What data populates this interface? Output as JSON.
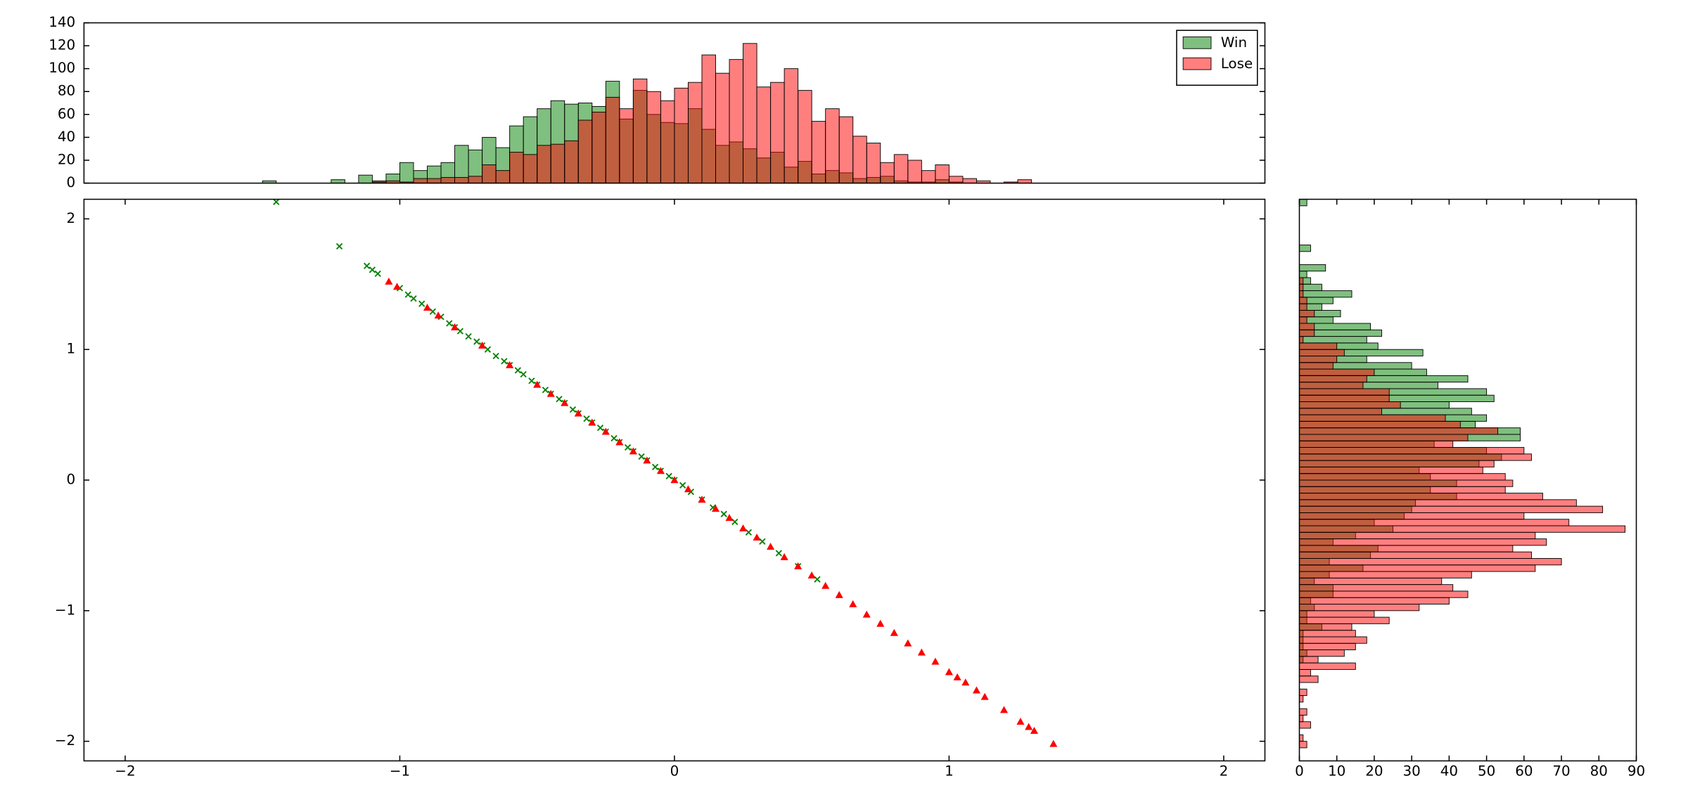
{
  "chart_data": [
    {
      "type": "histogram",
      "orientation": "vertical",
      "alpha": 0.5,
      "legend": "upper right",
      "bins": [
        -1.5,
        -1.45,
        -1.4,
        -1.35,
        -1.3,
        -1.25,
        -1.2,
        -1.15,
        -1.1,
        -1.05,
        -1.0,
        -0.95,
        -0.9,
        -0.85,
        -0.8,
        -0.75,
        -0.7,
        -0.65,
        -0.6,
        -0.55,
        -0.5,
        -0.45,
        -0.4,
        -0.35,
        -0.3,
        -0.25,
        -0.2,
        -0.15,
        -0.1,
        -0.05,
        0,
        0.05,
        0.1,
        0.15,
        0.2,
        0.25,
        0.3,
        0.35,
        0.4,
        0.45,
        0.5,
        0.55,
        0.6,
        0.65,
        0.7,
        0.75,
        0.8,
        0.85,
        0.9,
        0.95,
        1.0,
        1.05,
        1.1,
        1.15,
        1.2,
        1.25,
        1.3,
        1.35,
        1.4,
        1.45,
        1.5
      ],
      "series": [
        {
          "name": "Win",
          "color": "green",
          "values": [
            2,
            0,
            0,
            0,
            0,
            3,
            0,
            7,
            2,
            8,
            18,
            11,
            15,
            18,
            33,
            29,
            40,
            31,
            50,
            58,
            65,
            72,
            69,
            70,
            67,
            89,
            56,
            81,
            60,
            53,
            52,
            65,
            47,
            33,
            36,
            30,
            22,
            27,
            14,
            19,
            8,
            11,
            9,
            4,
            5,
            6,
            2,
            1,
            1,
            3,
            1,
            0,
            0,
            0,
            0,
            0,
            0,
            0,
            0,
            0
          ]
        },
        {
          "name": "Lose",
          "color": "red",
          "values": [
            0,
            0,
            0,
            0,
            0,
            0,
            0,
            0,
            1,
            2,
            1,
            4,
            4,
            5,
            5,
            6,
            16,
            11,
            27,
            25,
            33,
            34,
            37,
            55,
            62,
            75,
            65,
            91,
            80,
            72,
            83,
            88,
            112,
            96,
            108,
            122,
            84,
            88,
            100,
            81,
            54,
            65,
            58,
            41,
            35,
            18,
            25,
            20,
            11,
            16,
            6,
            4,
            2,
            0,
            1,
            3,
            0,
            0,
            0,
            0
          ]
        }
      ],
      "xlim": [
        -2.15,
        2.15
      ],
      "ylim": [
        0,
        140
      ],
      "yticks": [
        0,
        20,
        40,
        60,
        80,
        100,
        120,
        140
      ]
    },
    {
      "type": "scatter",
      "series": [
        {
          "color": "green",
          "marker": "x",
          "x": [
            -1.45,
            -1.22,
            -1.12,
            -1.1,
            -1.08,
            -1.0,
            -0.97,
            -0.95,
            -0.92,
            -0.88,
            -0.85,
            -0.82,
            -0.8,
            -0.78,
            -0.75,
            -0.72,
            -0.7,
            -0.68,
            -0.65,
            -0.62,
            -0.6,
            -0.57,
            -0.55,
            -0.52,
            -0.5,
            -0.47,
            -0.45,
            -0.42,
            -0.4,
            -0.37,
            -0.35,
            -0.32,
            -0.3,
            -0.27,
            -0.25,
            -0.22,
            -0.2,
            -0.17,
            -0.15,
            -0.12,
            -0.1,
            -0.07,
            -0.05,
            -0.02,
            0,
            0.03,
            0.06,
            0.1,
            0.14,
            0.18,
            0.22,
            0.27,
            0.32,
            0.38,
            0.45,
            0.52
          ],
          "y": [
            2.13,
            1.79,
            1.64,
            1.61,
            1.58,
            1.47,
            1.42,
            1.39,
            1.35,
            1.29,
            1.25,
            1.2,
            1.17,
            1.14,
            1.1,
            1.06,
            1.03,
            1.0,
            0.95,
            0.91,
            0.88,
            0.84,
            0.81,
            0.76,
            0.73,
            0.69,
            0.66,
            0.62,
            0.59,
            0.54,
            0.51,
            0.47,
            0.44,
            0.4,
            0.37,
            0.32,
            0.29,
            0.25,
            0.22,
            0.18,
            0.15,
            0.1,
            0.07,
            0.03,
            0,
            -0.04,
            -0.09,
            -0.15,
            -0.21,
            -0.26,
            -0.32,
            -0.4,
            -0.47,
            -0.56,
            -0.66,
            -0.76
          ]
        },
        {
          "color": "red",
          "marker": "^",
          "x": [
            -1.04,
            -1.01,
            -0.9,
            -0.86,
            -0.8,
            -0.7,
            -0.6,
            -0.5,
            -0.45,
            -0.4,
            -0.35,
            -0.3,
            -0.25,
            -0.2,
            -0.15,
            -0.1,
            -0.05,
            0,
            0.05,
            0.1,
            0.15,
            0.2,
            0.25,
            0.3,
            0.35,
            0.4,
            0.45,
            0.5,
            0.55,
            0.6,
            0.65,
            0.7,
            0.75,
            0.8,
            0.85,
            0.9,
            0.95,
            1.0,
            1.03,
            1.06,
            1.1,
            1.13,
            1.2,
            1.26,
            1.29,
            1.31,
            1.38
          ],
          "y": [
            1.52,
            1.48,
            1.32,
            1.26,
            1.17,
            1.03,
            0.88,
            0.73,
            0.66,
            0.59,
            0.51,
            0.44,
            0.37,
            0.29,
            0.22,
            0.15,
            0.07,
            0,
            -0.07,
            -0.15,
            -0.22,
            -0.29,
            -0.37,
            -0.44,
            -0.51,
            -0.59,
            -0.66,
            -0.73,
            -0.81,
            -0.88,
            -0.95,
            -1.03,
            -1.1,
            -1.17,
            -1.25,
            -1.32,
            -1.39,
            -1.47,
            -1.51,
            -1.55,
            -1.61,
            -1.66,
            -1.76,
            -1.85,
            -1.89,
            -1.92,
            -2.02
          ]
        }
      ],
      "xlim": [
        -2.15,
        2.15
      ],
      "ylim": [
        -2.15,
        2.15
      ],
      "xticks": [
        {
          "value": -2,
          "label": "−2"
        },
        {
          "value": -1,
          "label": "−1"
        },
        0,
        1,
        2
      ],
      "yticks": [
        {
          "value": -2,
          "label": "−2"
        },
        {
          "value": -1,
          "label": "−1"
        },
        0,
        1,
        2
      ]
    },
    {
      "type": "histogram",
      "orientation": "horizontal",
      "alpha": 0.5,
      "bins": [
        -2.05,
        -2.0,
        -1.95,
        -1.9,
        -1.85,
        -1.8,
        -1.75,
        -1.7,
        -1.65,
        -1.6,
        -1.55,
        -1.5,
        -1.45,
        -1.4,
        -1.35,
        -1.3,
        -1.25,
        -1.2,
        -1.15,
        -1.1,
        -1.05,
        -1.0,
        -0.95,
        -0.9,
        -0.85,
        -0.8,
        -0.75,
        -0.7,
        -0.65,
        -0.6,
        -0.55,
        -0.5,
        -0.45,
        -0.4,
        -0.35,
        -0.3,
        -0.25,
        -0.2,
        -0.15,
        -0.1,
        -0.05,
        0,
        0.05,
        0.1,
        0.15,
        0.2,
        0.25,
        0.3,
        0.35,
        0.4,
        0.45,
        0.5,
        0.55,
        0.6,
        0.65,
        0.7,
        0.75,
        0.8,
        0.85,
        0.9,
        0.95,
        1.0,
        1.05,
        1.1,
        1.15,
        1.2,
        1.25,
        1.3,
        1.35,
        1.4,
        1.45,
        1.5,
        1.55,
        1.6,
        1.65,
        1.7,
        1.75,
        1.8,
        1.85,
        1.9,
        1.95,
        2.0,
        2.05,
        2.1,
        2.15
      ],
      "series": [
        {
          "color": "green",
          "values": [
            0,
            0,
            0,
            0,
            0,
            0,
            0,
            0,
            0,
            0,
            0,
            0,
            0,
            1,
            2,
            1,
            1,
            1,
            6,
            2,
            2,
            4,
            3,
            9,
            9,
            4,
            8,
            17,
            8,
            19,
            21,
            9,
            15,
            25,
            20,
            28,
            30,
            31,
            42,
            35,
            42,
            35,
            32,
            48,
            54,
            50,
            36,
            59,
            59,
            47,
            50,
            46,
            40,
            52,
            50,
            37,
            45,
            34,
            30,
            18,
            33,
            21,
            18,
            22,
            19,
            9,
            11,
            6,
            9,
            14,
            6,
            3,
            2,
            7,
            0,
            0,
            3,
            0,
            0,
            0,
            0,
            0,
            0,
            2
          ]
        },
        {
          "color": "red",
          "values": [
            2,
            1,
            0,
            3,
            1,
            2,
            0,
            1,
            2,
            0,
            5,
            3,
            15,
            5,
            12,
            15,
            18,
            15,
            14,
            24,
            20,
            32,
            40,
            45,
            41,
            38,
            46,
            63,
            70,
            62,
            57,
            66,
            63,
            87,
            72,
            60,
            81,
            74,
            65,
            55,
            57,
            55,
            49,
            52,
            62,
            60,
            41,
            45,
            53,
            43,
            39,
            22,
            27,
            24,
            24,
            17,
            18,
            20,
            9,
            10,
            12,
            10,
            1,
            4,
            4,
            2,
            4,
            2,
            2,
            1,
            1,
            1,
            0,
            0,
            0,
            0,
            0,
            0,
            0,
            0,
            0,
            0,
            0,
            0
          ]
        }
      ],
      "xlim": [
        0,
        90
      ],
      "xticks": [
        0,
        10,
        20,
        30,
        40,
        50,
        60,
        70,
        80,
        90
      ],
      "ylim": [
        -2.15,
        2.15
      ]
    }
  ]
}
